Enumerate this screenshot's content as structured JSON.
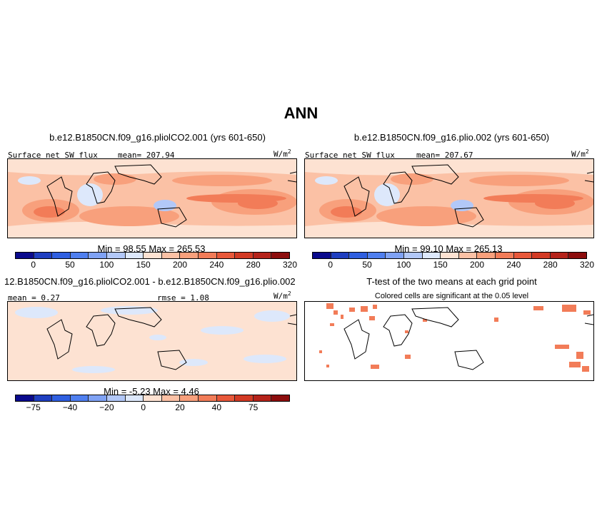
{
  "title": "ANN",
  "panels": {
    "p1": {
      "title": "b.e12.B1850CN.f09_g16.pliolCO2.001 (yrs 601-650)",
      "variable": "Surface net SW flux",
      "mean": "mean= 207.94",
      "units": "W/m",
      "units_sup": "2",
      "minmax": "Min =  98.55 Max = 265.53"
    },
    "p2": {
      "title": "b.e12.B1850CN.f09_g16.plio.002 (yrs 601-650)",
      "variable": "Surface net SW flux",
      "mean": "mean= 207.67",
      "units": "W/m",
      "units_sup": "2",
      "minmax": "Min =  99.10 Max = 265.13"
    },
    "p3": {
      "title": "12.B1850CN.f09_g16.pliolCO2.001 - b.e12.B1850CN.f09_g16.plio.002",
      "mean": "mean =   0.27",
      "rmse": "rmse =   1.08",
      "units": "W/m",
      "units_sup": "2",
      "minmax": "Min =  -5.23 Max =   4.46"
    },
    "p4": {
      "title": "T-test of the two means at each grid point",
      "subtitle": "Colored cells are significant at the 0.05 level"
    }
  },
  "colorbar_abs": {
    "colors": [
      "#0a0a8c",
      "#1f3fc0",
      "#2f5fe0",
      "#4f7fef",
      "#7fa2f4",
      "#b2c8f8",
      "#dde8fb",
      "#fde2d2",
      "#fbc1a5",
      "#f8a07c",
      "#f27c58",
      "#e8583a",
      "#d23a24",
      "#b5231a",
      "#8c0d0d"
    ],
    "ticks": [
      "0",
      "50",
      "100",
      "150",
      "200",
      "240",
      "280",
      "320"
    ]
  },
  "colorbar_diff": {
    "colors": [
      "#0a0a8c",
      "#1f3fc0",
      "#2f5fe0",
      "#4f7fef",
      "#7fa2f4",
      "#b2c8f8",
      "#dde8fb",
      "#fde2d2",
      "#fbc1a5",
      "#f8a07c",
      "#f27c58",
      "#e8583a",
      "#d23a24",
      "#b5231a",
      "#8c0d0d"
    ],
    "ticks": [
      "−75",
      "−40",
      "−20",
      "0",
      "20",
      "40",
      "75"
    ]
  }
}
